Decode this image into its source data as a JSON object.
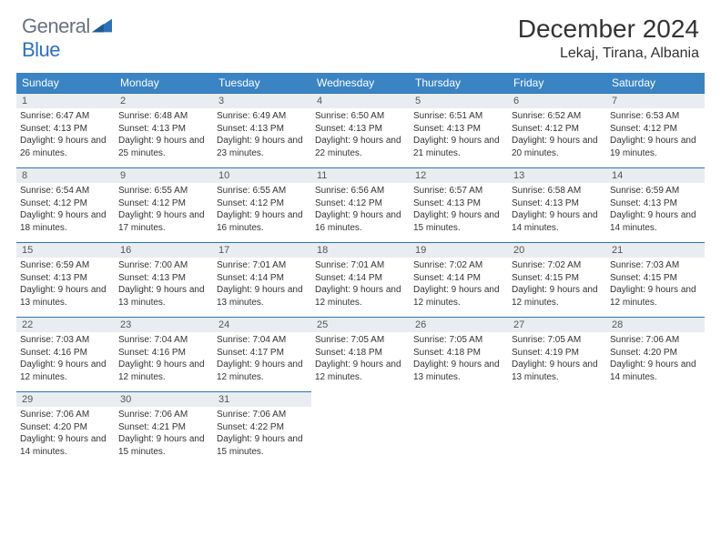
{
  "logo": {
    "general": "General",
    "blue": "Blue"
  },
  "title": "December 2024",
  "location": "Lekaj, Tirana, Albania",
  "colors": {
    "header_bg": "#3b84c4",
    "header_border": "#2d72b8",
    "daynum_bg": "#e9edf1",
    "text": "#333333",
    "logo_gray": "#6b7280",
    "logo_blue": "#2d72b8"
  },
  "weekdays": [
    "Sunday",
    "Monday",
    "Tuesday",
    "Wednesday",
    "Thursday",
    "Friday",
    "Saturday"
  ],
  "weeks": [
    [
      {
        "n": 1,
        "sr": "Sunrise: 6:47 AM",
        "ss": "Sunset: 4:13 PM",
        "dl": "Daylight: 9 hours and 26 minutes."
      },
      {
        "n": 2,
        "sr": "Sunrise: 6:48 AM",
        "ss": "Sunset: 4:13 PM",
        "dl": "Daylight: 9 hours and 25 minutes."
      },
      {
        "n": 3,
        "sr": "Sunrise: 6:49 AM",
        "ss": "Sunset: 4:13 PM",
        "dl": "Daylight: 9 hours and 23 minutes."
      },
      {
        "n": 4,
        "sr": "Sunrise: 6:50 AM",
        "ss": "Sunset: 4:13 PM",
        "dl": "Daylight: 9 hours and 22 minutes."
      },
      {
        "n": 5,
        "sr": "Sunrise: 6:51 AM",
        "ss": "Sunset: 4:13 PM",
        "dl": "Daylight: 9 hours and 21 minutes."
      },
      {
        "n": 6,
        "sr": "Sunrise: 6:52 AM",
        "ss": "Sunset: 4:12 PM",
        "dl": "Daylight: 9 hours and 20 minutes."
      },
      {
        "n": 7,
        "sr": "Sunrise: 6:53 AM",
        "ss": "Sunset: 4:12 PM",
        "dl": "Daylight: 9 hours and 19 minutes."
      }
    ],
    [
      {
        "n": 8,
        "sr": "Sunrise: 6:54 AM",
        "ss": "Sunset: 4:12 PM",
        "dl": "Daylight: 9 hours and 18 minutes."
      },
      {
        "n": 9,
        "sr": "Sunrise: 6:55 AM",
        "ss": "Sunset: 4:12 PM",
        "dl": "Daylight: 9 hours and 17 minutes."
      },
      {
        "n": 10,
        "sr": "Sunrise: 6:55 AM",
        "ss": "Sunset: 4:12 PM",
        "dl": "Daylight: 9 hours and 16 minutes."
      },
      {
        "n": 11,
        "sr": "Sunrise: 6:56 AM",
        "ss": "Sunset: 4:12 PM",
        "dl": "Daylight: 9 hours and 16 minutes."
      },
      {
        "n": 12,
        "sr": "Sunrise: 6:57 AM",
        "ss": "Sunset: 4:13 PM",
        "dl": "Daylight: 9 hours and 15 minutes."
      },
      {
        "n": 13,
        "sr": "Sunrise: 6:58 AM",
        "ss": "Sunset: 4:13 PM",
        "dl": "Daylight: 9 hours and 14 minutes."
      },
      {
        "n": 14,
        "sr": "Sunrise: 6:59 AM",
        "ss": "Sunset: 4:13 PM",
        "dl": "Daylight: 9 hours and 14 minutes."
      }
    ],
    [
      {
        "n": 15,
        "sr": "Sunrise: 6:59 AM",
        "ss": "Sunset: 4:13 PM",
        "dl": "Daylight: 9 hours and 13 minutes."
      },
      {
        "n": 16,
        "sr": "Sunrise: 7:00 AM",
        "ss": "Sunset: 4:13 PM",
        "dl": "Daylight: 9 hours and 13 minutes."
      },
      {
        "n": 17,
        "sr": "Sunrise: 7:01 AM",
        "ss": "Sunset: 4:14 PM",
        "dl": "Daylight: 9 hours and 13 minutes."
      },
      {
        "n": 18,
        "sr": "Sunrise: 7:01 AM",
        "ss": "Sunset: 4:14 PM",
        "dl": "Daylight: 9 hours and 12 minutes."
      },
      {
        "n": 19,
        "sr": "Sunrise: 7:02 AM",
        "ss": "Sunset: 4:14 PM",
        "dl": "Daylight: 9 hours and 12 minutes."
      },
      {
        "n": 20,
        "sr": "Sunrise: 7:02 AM",
        "ss": "Sunset: 4:15 PM",
        "dl": "Daylight: 9 hours and 12 minutes."
      },
      {
        "n": 21,
        "sr": "Sunrise: 7:03 AM",
        "ss": "Sunset: 4:15 PM",
        "dl": "Daylight: 9 hours and 12 minutes."
      }
    ],
    [
      {
        "n": 22,
        "sr": "Sunrise: 7:03 AM",
        "ss": "Sunset: 4:16 PM",
        "dl": "Daylight: 9 hours and 12 minutes."
      },
      {
        "n": 23,
        "sr": "Sunrise: 7:04 AM",
        "ss": "Sunset: 4:16 PM",
        "dl": "Daylight: 9 hours and 12 minutes."
      },
      {
        "n": 24,
        "sr": "Sunrise: 7:04 AM",
        "ss": "Sunset: 4:17 PM",
        "dl": "Daylight: 9 hours and 12 minutes."
      },
      {
        "n": 25,
        "sr": "Sunrise: 7:05 AM",
        "ss": "Sunset: 4:18 PM",
        "dl": "Daylight: 9 hours and 12 minutes."
      },
      {
        "n": 26,
        "sr": "Sunrise: 7:05 AM",
        "ss": "Sunset: 4:18 PM",
        "dl": "Daylight: 9 hours and 13 minutes."
      },
      {
        "n": 27,
        "sr": "Sunrise: 7:05 AM",
        "ss": "Sunset: 4:19 PM",
        "dl": "Daylight: 9 hours and 13 minutes."
      },
      {
        "n": 28,
        "sr": "Sunrise: 7:06 AM",
        "ss": "Sunset: 4:20 PM",
        "dl": "Daylight: 9 hours and 14 minutes."
      }
    ],
    [
      {
        "n": 29,
        "sr": "Sunrise: 7:06 AM",
        "ss": "Sunset: 4:20 PM",
        "dl": "Daylight: 9 hours and 14 minutes."
      },
      {
        "n": 30,
        "sr": "Sunrise: 7:06 AM",
        "ss": "Sunset: 4:21 PM",
        "dl": "Daylight: 9 hours and 15 minutes."
      },
      {
        "n": 31,
        "sr": "Sunrise: 7:06 AM",
        "ss": "Sunset: 4:22 PM",
        "dl": "Daylight: 9 hours and 15 minutes."
      },
      null,
      null,
      null,
      null
    ]
  ]
}
